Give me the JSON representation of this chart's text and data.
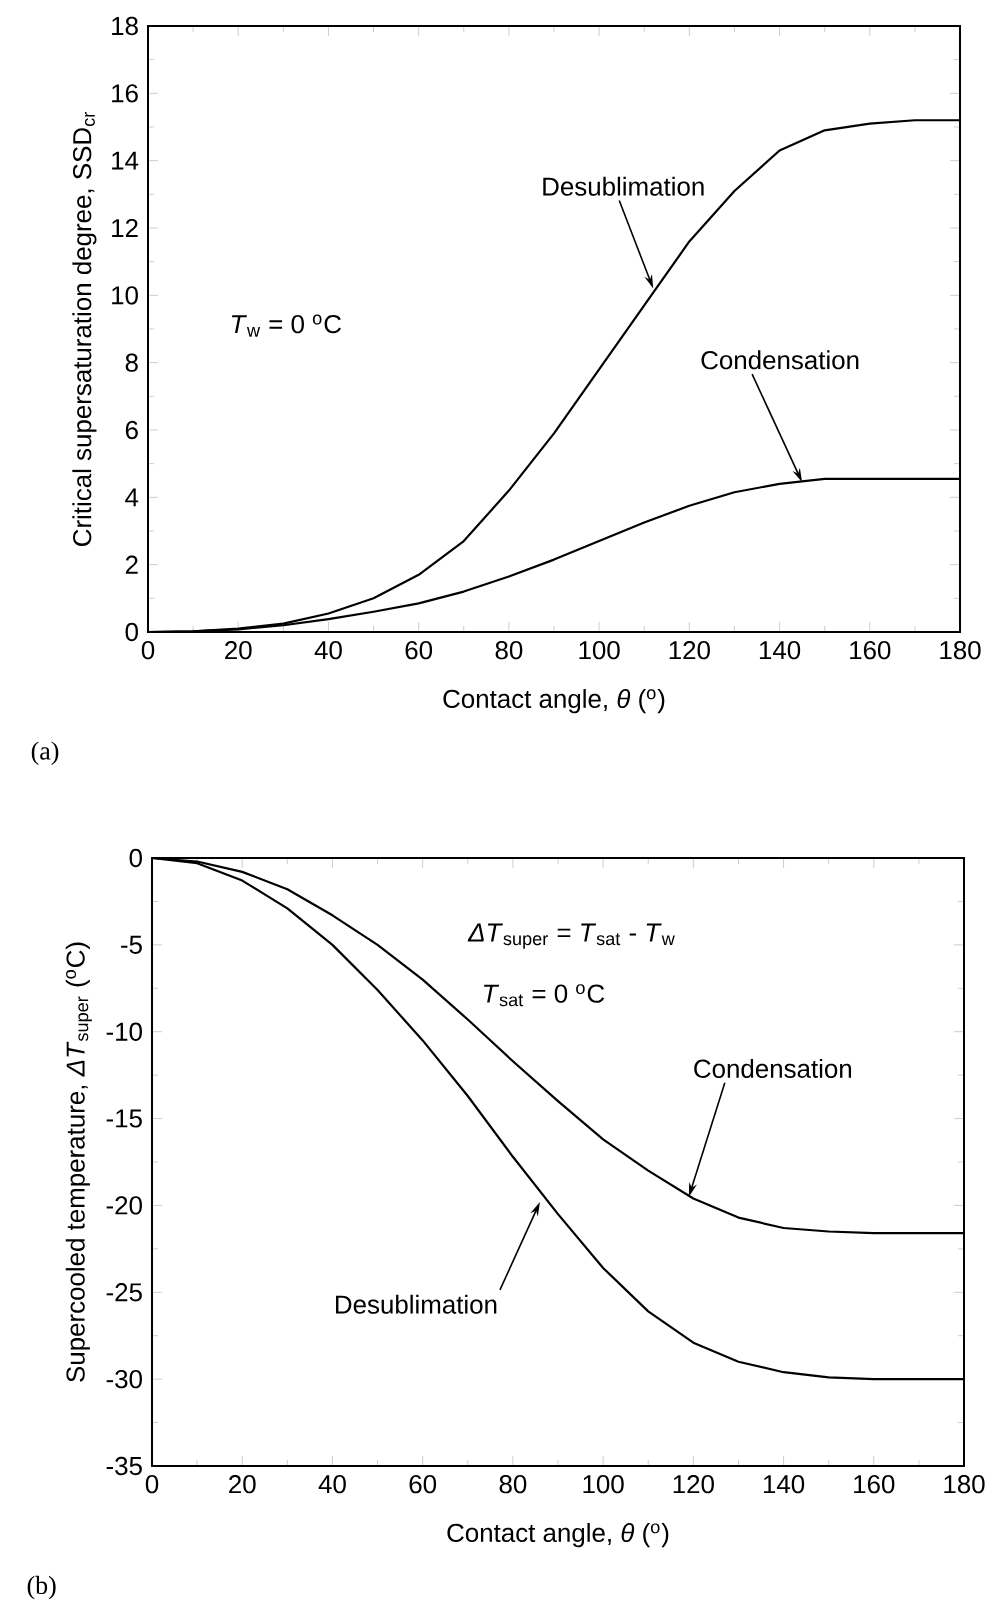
{
  "chart_data": [
    {
      "type": "line",
      "xlabel": "Contact angle, *θ* ($^{o}$)",
      "ylabel": "Critical supersaturation degree, SSD$_{cr}$",
      "xlim": [
        0,
        180
      ],
      "ylim": [
        0,
        18
      ],
      "xticks": [
        0,
        20,
        40,
        60,
        80,
        100,
        120,
        140,
        160,
        180
      ],
      "yticks": [
        0,
        2,
        4,
        6,
        8,
        10,
        12,
        14,
        16,
        18
      ],
      "grid": false,
      "marker": "none",
      "line_style": "solid",
      "x": [
        0,
        10,
        20,
        30,
        40,
        50,
        60,
        70,
        80,
        90,
        100,
        110,
        120,
        130,
        140,
        150,
        160,
        170,
        180
      ],
      "series": [
        {
          "color": "#000000",
          "values": [
            0,
            0.02,
            0.1,
            0.25,
            0.55,
            1.0,
            1.7,
            2.7,
            4.2,
            5.9,
            7.8,
            9.7,
            11.6,
            13.1,
            14.3,
            14.9,
            15.1,
            15.2,
            15.2
          ]
        },
        {
          "color": "#000000",
          "values": [
            0,
            0.02,
            0.08,
            0.2,
            0.38,
            0.6,
            0.85,
            1.2,
            1.65,
            2.15,
            2.7,
            3.25,
            3.75,
            4.15,
            4.4,
            4.55,
            4.55,
            4.55,
            4.55
          ]
        }
      ],
      "annotations": [
        "(a)",
        "*T*$_{w}$ = 0 $^{o}$C",
        {
          "text": "Desublimation",
          "x": 112,
          "y": 10.2
        },
        {
          "text": "Condensation",
          "x": 145,
          "y": 4.45
        }
      ]
    },
    {
      "type": "line",
      "xlabel": "Contact angle, *θ* ($^{o}$)",
      "ylabel": "Supercooled temperature, *ΔT*$_{super}$ ($^{o}$C)",
      "xlim": [
        0,
        180
      ],
      "ylim": [
        -35,
        0
      ],
      "xticks": [
        0,
        20,
        40,
        60,
        80,
        100,
        120,
        140,
        160,
        180
      ],
      "yticks": [
        -35,
        -30,
        -25,
        -20,
        -15,
        -10,
        -5,
        0
      ],
      "grid": false,
      "marker": "none",
      "line_style": "solid",
      "x": [
        0,
        10,
        20,
        30,
        40,
        50,
        60,
        70,
        80,
        90,
        100,
        110,
        120,
        130,
        140,
        150,
        160,
        170,
        180
      ],
      "series": [
        {
          "color": "#000000",
          "values": [
            0,
            -0.2,
            -0.8,
            -1.8,
            -3.3,
            -5.0,
            -7.0,
            -9.3,
            -11.7,
            -14.0,
            -16.2,
            -18.0,
            -19.6,
            -20.7,
            -21.3,
            -21.5,
            -21.6,
            -21.6,
            -21.6
          ]
        },
        {
          "color": "#000000",
          "values": [
            0,
            -0.3,
            -1.3,
            -2.9,
            -5.0,
            -7.6,
            -10.5,
            -13.7,
            -17.2,
            -20.5,
            -23.6,
            -26.1,
            -27.9,
            -29.0,
            -29.6,
            -29.9,
            -30.0,
            -30.0,
            -30.0
          ]
        }
      ],
      "annotations": [
        "(b)",
        "*ΔT*$_{super}$ = *T*$_{sat}$ - *T*$_{w}$",
        "*T*$_{sat}$ = 0 $^{o}$C",
        {
          "text": "Condensation",
          "x": 119,
          "y": -19.5
        },
        {
          "text": "Desublimation",
          "x": 86,
          "y": -19.8
        }
      ]
    }
  ]
}
